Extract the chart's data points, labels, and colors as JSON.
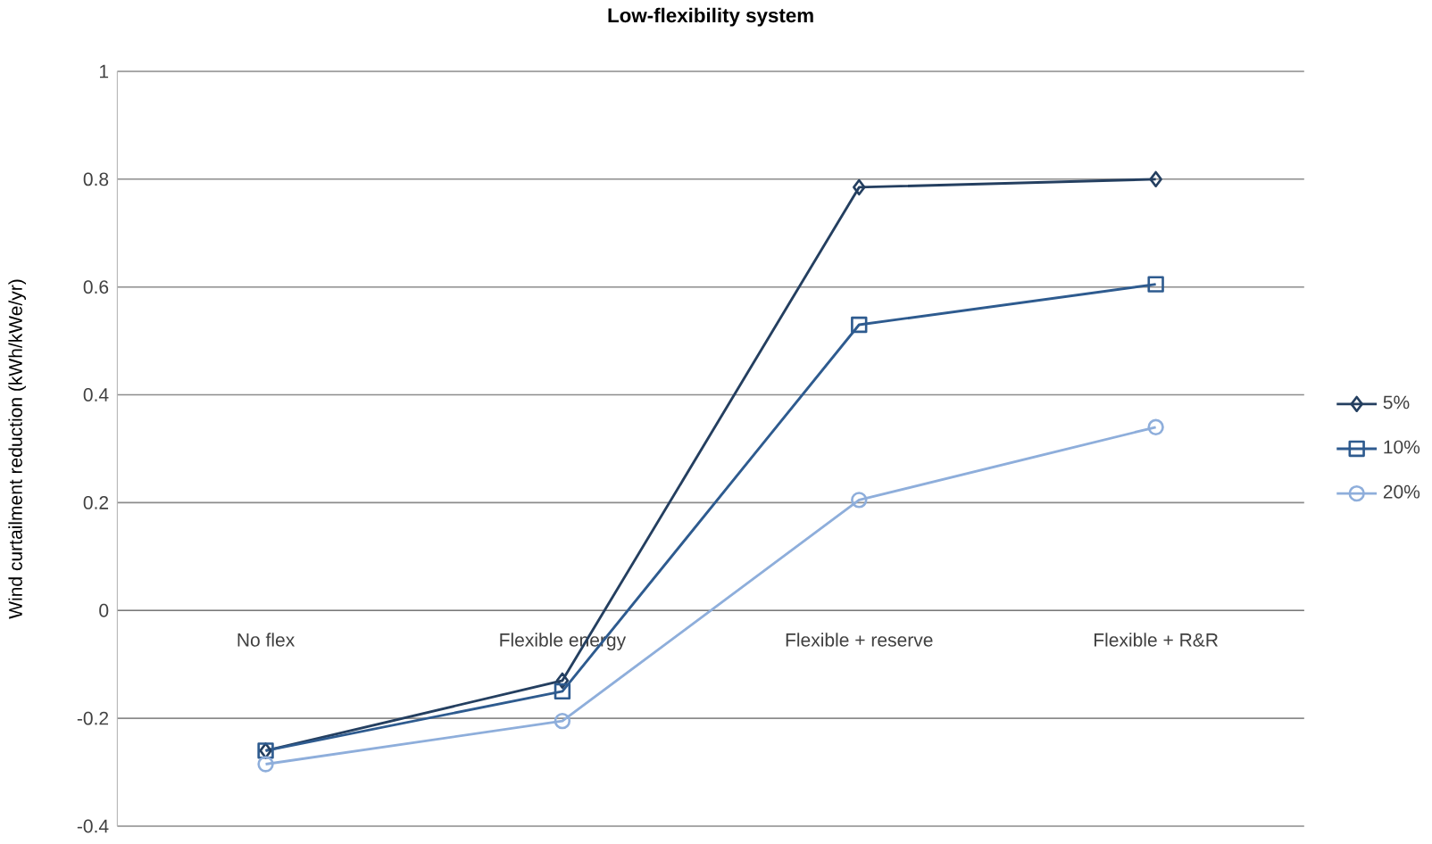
{
  "chart_data": {
    "type": "line",
    "title": "Low-flexibility system",
    "ylabel": "Wind curtailment reduction (kWh/kWe/yr)",
    "categories": [
      "No flex",
      "Flexible energy",
      "Flexible + reserve",
      "Flexible + R&R"
    ],
    "series": [
      {
        "name": "5%",
        "color": "#243f60",
        "marker": "diamond",
        "values": [
          -0.26,
          -0.13,
          0.785,
          0.8
        ]
      },
      {
        "name": "10%",
        "color": "#2e5b8f",
        "marker": "square",
        "values": [
          -0.26,
          -0.15,
          0.53,
          0.605
        ]
      },
      {
        "name": "20%",
        "color": "#8eaedb",
        "marker": "circle",
        "values": [
          -0.285,
          -0.205,
          0.205,
          0.34
        ]
      }
    ],
    "ylim": [
      -0.4,
      1
    ],
    "yticks": [
      -0.4,
      -0.2,
      0,
      0.2,
      0.4,
      0.6,
      0.8,
      1
    ],
    "grid": "y",
    "legend": "right",
    "line_style": "solid"
  }
}
